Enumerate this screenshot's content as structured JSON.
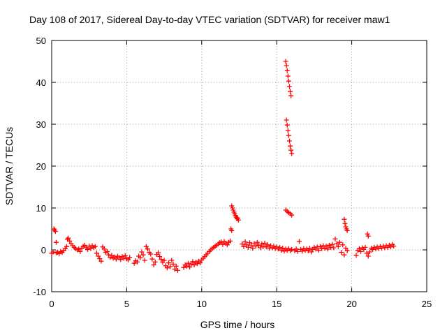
{
  "chart_data": {
    "type": "scatter",
    "title": "Day 108 of 2017, Sidereal Day-to-day VTEC variation (SDTVAR) for receiver maw1",
    "xlabel": "GPS time / hours",
    "ylabel": "SDTVAR / TECUs",
    "xlim": [
      0,
      25
    ],
    "ylim": [
      -10,
      50
    ],
    "xticks": [
      0,
      5,
      10,
      15,
      20,
      25
    ],
    "yticks": [
      -10,
      0,
      10,
      20,
      30,
      40,
      50
    ],
    "grid": true,
    "marker": "+",
    "marker_color": "#ff0000",
    "series": [
      {
        "name": "maw1",
        "points": [
          [
            0.0,
            -0.8
          ],
          [
            0.1,
            -0.5
          ],
          [
            0.15,
            5.0
          ],
          [
            0.2,
            4.7
          ],
          [
            0.25,
            4.4
          ],
          [
            0.3,
            -0.7
          ],
          [
            0.3,
            1.8
          ],
          [
            0.4,
            -0.6
          ],
          [
            0.5,
            -0.9
          ],
          [
            0.6,
            -0.4
          ],
          [
            0.7,
            -0.6
          ],
          [
            0.8,
            -0.2
          ],
          [
            0.9,
            0.3
          ],
          [
            1.0,
            0.8
          ],
          [
            1.05,
            2.5
          ],
          [
            1.1,
            2.8
          ],
          [
            1.2,
            2.1
          ],
          [
            1.3,
            1.5
          ],
          [
            1.4,
            1.0
          ],
          [
            1.5,
            0.6
          ],
          [
            1.6,
            0.3
          ],
          [
            1.7,
            0.0
          ],
          [
            1.8,
            0.2
          ],
          [
            1.9,
            -0.4
          ],
          [
            2.0,
            0.4
          ],
          [
            2.1,
            0.8
          ],
          [
            2.2,
            1.1
          ],
          [
            2.3,
            0.5
          ],
          [
            2.4,
            0.1
          ],
          [
            2.5,
            0.9
          ],
          [
            2.6,
            0.3
          ],
          [
            2.7,
            1.0
          ],
          [
            2.8,
            0.6
          ],
          [
            2.9,
            0.8
          ],
          [
            3.0,
            -0.8
          ],
          [
            3.1,
            -1.5
          ],
          [
            3.2,
            -2.1
          ],
          [
            3.3,
            -2.7
          ],
          [
            3.4,
            0.7
          ],
          [
            3.5,
            0.2
          ],
          [
            3.6,
            -0.6
          ],
          [
            3.7,
            -0.4
          ],
          [
            3.8,
            -1.2
          ],
          [
            3.9,
            -1.8
          ],
          [
            4.0,
            -1.3
          ],
          [
            4.1,
            -2.0
          ],
          [
            4.2,
            -1.7
          ],
          [
            4.3,
            -2.2
          ],
          [
            4.4,
            -1.5
          ],
          [
            4.5,
            -1.9
          ],
          [
            4.6,
            -2.3
          ],
          [
            4.7,
            -1.6
          ],
          [
            4.8,
            -2.0
          ],
          [
            4.9,
            -1.4
          ],
          [
            5.0,
            -2.1
          ],
          [
            5.1,
            -2.4
          ],
          [
            5.2,
            -1.8
          ],
          [
            5.5,
            -3.2
          ],
          [
            5.6,
            -2.6
          ],
          [
            5.7,
            -2.9
          ],
          [
            5.8,
            -1.5
          ],
          [
            5.9,
            -1.9
          ],
          [
            6.0,
            -0.5
          ],
          [
            6.1,
            -1.2
          ],
          [
            6.2,
            -2.5
          ],
          [
            6.3,
            0.8
          ],
          [
            6.4,
            0.2
          ],
          [
            6.5,
            -0.6
          ],
          [
            6.6,
            -1.0
          ],
          [
            6.7,
            -2.2
          ],
          [
            6.8,
            -3.6
          ],
          [
            6.9,
            -2.9
          ],
          [
            7.0,
            -1.1
          ],
          [
            7.1,
            -0.7
          ],
          [
            7.2,
            -1.6
          ],
          [
            7.3,
            -2.3
          ],
          [
            7.4,
            -3.0
          ],
          [
            7.5,
            -2.5
          ],
          [
            7.6,
            -3.8
          ],
          [
            7.7,
            -4.3
          ],
          [
            7.8,
            -3.1
          ],
          [
            7.9,
            -4.0
          ],
          [
            8.0,
            -2.5
          ],
          [
            8.1,
            -3.4
          ],
          [
            8.2,
            -4.6
          ],
          [
            8.3,
            -3.9
          ],
          [
            8.4,
            -4.9
          ],
          [
            8.8,
            -4.2
          ],
          [
            8.9,
            -3.6
          ],
          [
            9.0,
            -3.9
          ],
          [
            9.1,
            -3.2
          ],
          [
            9.2,
            -4.1
          ],
          [
            9.3,
            -3.4
          ],
          [
            9.4,
            -2.8
          ],
          [
            9.5,
            -3.6
          ],
          [
            9.6,
            -3.0
          ],
          [
            9.7,
            -3.3
          ],
          [
            9.8,
            -2.7
          ],
          [
            9.9,
            -3.1
          ],
          [
            10.0,
            -2.4
          ],
          [
            10.1,
            -2.0
          ],
          [
            10.2,
            -1.6
          ],
          [
            10.3,
            -1.2
          ],
          [
            10.4,
            -0.8
          ],
          [
            10.5,
            -0.4
          ],
          [
            10.6,
            0.0
          ],
          [
            10.7,
            0.3
          ],
          [
            10.8,
            0.6
          ],
          [
            10.9,
            0.9
          ],
          [
            11.0,
            1.1
          ],
          [
            11.1,
            1.4
          ],
          [
            11.2,
            1.7
          ],
          [
            11.3,
            1.9
          ],
          [
            11.4,
            1.3
          ],
          [
            11.5,
            2.0
          ],
          [
            11.6,
            1.6
          ],
          [
            11.7,
            1.2
          ],
          [
            11.8,
            1.8
          ],
          [
            11.9,
            2.1
          ],
          [
            11.95,
            5.0
          ],
          [
            12.0,
            4.6
          ],
          [
            12.0,
            10.5
          ],
          [
            12.05,
            10.0
          ],
          [
            12.1,
            9.5
          ],
          [
            12.15,
            9.0
          ],
          [
            12.2,
            8.6
          ],
          [
            12.25,
            8.2
          ],
          [
            12.3,
            7.8
          ],
          [
            12.35,
            7.4
          ],
          [
            12.4,
            7.6
          ],
          [
            12.45,
            7.1
          ],
          [
            12.7,
            1.4
          ],
          [
            12.8,
            0.8
          ],
          [
            12.9,
            1.9
          ],
          [
            13.0,
            1.2
          ],
          [
            13.1,
            0.6
          ],
          [
            13.2,
            1.7
          ],
          [
            13.3,
            1.0
          ],
          [
            13.4,
            0.4
          ],
          [
            13.5,
            1.5
          ],
          [
            13.6,
            0.9
          ],
          [
            13.7,
            1.8
          ],
          [
            13.8,
            1.1
          ],
          [
            13.9,
            0.5
          ],
          [
            14.0,
            1.4
          ],
          [
            14.1,
            0.8
          ],
          [
            14.2,
            1.6
          ],
          [
            14.3,
            0.7
          ],
          [
            14.4,
            1.2
          ],
          [
            14.5,
            0.4
          ],
          [
            14.6,
            1.0
          ],
          [
            14.7,
            0.5
          ],
          [
            14.8,
            0.9
          ],
          [
            14.9,
            0.3
          ],
          [
            15.0,
            0.7
          ],
          [
            15.1,
            0.2
          ],
          [
            15.2,
            0.6
          ],
          [
            15.3,
            -0.1
          ],
          [
            15.4,
            0.4
          ],
          [
            15.5,
            -0.3
          ],
          [
            15.6,
            0.2
          ],
          [
            15.6,
            45.0
          ],
          [
            15.65,
            44.0
          ],
          [
            15.7,
            42.8
          ],
          [
            15.75,
            41.5
          ],
          [
            15.8,
            40.3
          ],
          [
            15.85,
            39.0
          ],
          [
            15.9,
            37.8
          ],
          [
            15.95,
            36.8
          ],
          [
            15.65,
            31.0
          ],
          [
            15.7,
            29.8
          ],
          [
            15.75,
            28.5
          ],
          [
            15.8,
            27.3
          ],
          [
            15.85,
            26.0
          ],
          [
            15.9,
            24.8
          ],
          [
            15.95,
            23.8
          ],
          [
            16.0,
            23.0
          ],
          [
            15.6,
            9.5
          ],
          [
            15.7,
            9.2
          ],
          [
            15.8,
            8.9
          ],
          [
            15.9,
            8.6
          ],
          [
            16.0,
            8.3
          ],
          [
            15.7,
            -0.1
          ],
          [
            15.8,
            0.3
          ],
          [
            15.9,
            -0.2
          ],
          [
            16.0,
            0.1
          ],
          [
            16.2,
            -0.2
          ],
          [
            16.3,
            0.2
          ],
          [
            16.4,
            -0.4
          ],
          [
            16.5,
            2.0
          ],
          [
            16.6,
            0.1
          ],
          [
            16.7,
            -0.3
          ],
          [
            16.8,
            0.3
          ],
          [
            16.9,
            -0.1
          ],
          [
            17.0,
            0.2
          ],
          [
            17.1,
            -0.2
          ],
          [
            17.2,
            0.4
          ],
          [
            17.3,
            -0.5
          ],
          [
            17.4,
            0.1
          ],
          [
            17.5,
            0.6
          ],
          [
            17.6,
            0.2
          ],
          [
            17.7,
            0.7
          ],
          [
            17.8,
            -0.1
          ],
          [
            17.9,
            0.8
          ],
          [
            18.0,
            0.3
          ],
          [
            18.1,
            1.0
          ],
          [
            18.2,
            0.4
          ],
          [
            18.3,
            0.9
          ],
          [
            18.4,
            0.2
          ],
          [
            18.5,
            1.1
          ],
          [
            18.6,
            0.6
          ],
          [
            18.7,
            1.3
          ],
          [
            18.8,
            0.5
          ],
          [
            18.9,
            2.6
          ],
          [
            19.0,
            1.5
          ],
          [
            19.1,
            0.8
          ],
          [
            19.2,
            1.8
          ],
          [
            19.3,
            -0.6
          ],
          [
            19.4,
            1.2
          ],
          [
            19.5,
            7.3
          ],
          [
            19.55,
            6.3
          ],
          [
            19.5,
            -1.2
          ],
          [
            19.6,
            5.5
          ],
          [
            19.65,
            5.0
          ],
          [
            19.7,
            4.6
          ],
          [
            19.6,
            0.4
          ],
          [
            19.7,
            -0.2
          ],
          [
            20.3,
            -1.3
          ],
          [
            20.4,
            -0.2
          ],
          [
            20.5,
            0.3
          ],
          [
            20.6,
            -0.4
          ],
          [
            20.7,
            0.5
          ],
          [
            20.8,
            0.1
          ],
          [
            20.9,
            0.6
          ],
          [
            21.0,
            -0.8
          ],
          [
            21.05,
            3.8
          ],
          [
            21.1,
            3.3
          ],
          [
            21.1,
            -1.5
          ],
          [
            21.2,
            -0.5
          ],
          [
            21.3,
            0.4
          ],
          [
            21.4,
            0.1
          ],
          [
            21.5,
            0.6
          ],
          [
            21.6,
            0.2
          ],
          [
            21.7,
            0.7
          ],
          [
            21.8,
            0.3
          ],
          [
            21.9,
            0.8
          ],
          [
            22.0,
            0.4
          ],
          [
            22.1,
            0.9
          ],
          [
            22.2,
            0.5
          ],
          [
            22.3,
            1.0
          ],
          [
            22.4,
            0.6
          ],
          [
            22.5,
            1.1
          ],
          [
            22.6,
            0.7
          ],
          [
            22.7,
            1.3
          ],
          [
            22.8,
            0.9
          ]
        ]
      }
    ]
  }
}
